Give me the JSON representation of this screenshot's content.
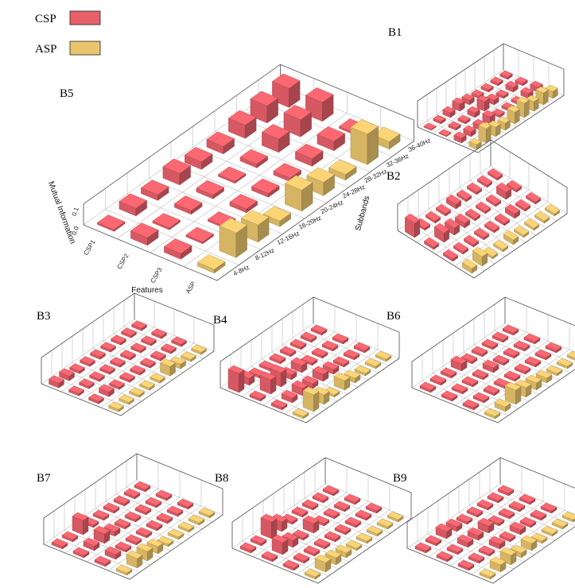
{
  "colors": {
    "csp": "#e8606a",
    "asp": "#e8c46c"
  },
  "legend": [
    {
      "label": "CSP",
      "key": "csp"
    },
    {
      "label": "ASP",
      "key": "asp"
    }
  ],
  "chart_data": [
    {
      "type": "bar3d",
      "panel": "B5",
      "title": "",
      "xlabel": "Features",
      "ylabel": "Subbands",
      "zlabel": "Mutual Information",
      "x_categories": [
        "CSP1",
        "CSP2",
        "CSP3",
        "ASP"
      ],
      "y_categories": [
        "4-8Hz",
        "8-12Hz",
        "12-16Hz",
        "16-20Hz",
        "20-24Hz",
        "24-28Hz",
        "28-32Hz",
        "32-36Hz",
        "36-40Hz"
      ],
      "z_ticks": [
        "0.0",
        "0.1"
      ],
      "zlim": [
        0,
        0.2
      ],
      "values": [
        [
          0.01,
          0.04,
          0.03,
          0.06,
          0.04,
          0.04,
          0.07,
          0.09,
          0.1
        ],
        [
          0.04,
          0.01,
          0.02,
          0.02,
          0.01,
          0.02,
          0.07,
          0.09,
          0.1
        ],
        [
          0.03,
          0.01,
          0.01,
          0.02,
          0.02,
          0.02,
          0.04,
          0.05,
          0.01
        ],
        [
          0.02,
          0.13,
          0.09,
          0.03,
          0.11,
          0.07,
          0.03,
          0.16,
          0.04
        ]
      ]
    },
    {
      "type": "bar3d",
      "panel": "B1",
      "values": [
        [
          0.0,
          0.01,
          0.02,
          0.03,
          0.02,
          0.01,
          0.01,
          0.01,
          0.01
        ],
        [
          0.0,
          0.01,
          0.01,
          0.02,
          0.04,
          0.02,
          0.01,
          0.02,
          0.01
        ],
        [
          0.02,
          0.02,
          0.02,
          0.03,
          0.01,
          0.01,
          0.01,
          0.02,
          0.02
        ],
        [
          0.02,
          0.06,
          0.04,
          0.03,
          0.05,
          0.06,
          0.04,
          0.05,
          0.03
        ]
      ]
    },
    {
      "type": "bar3d",
      "panel": "B2",
      "values": [
        [
          0.06,
          0.01,
          0.01,
          0.01,
          0.02,
          0.01,
          0.01,
          0.01,
          0.01
        ],
        [
          0.01,
          0.04,
          0.03,
          0.02,
          0.01,
          0.01,
          0.01,
          0.03,
          0.01
        ],
        [
          0.01,
          0.01,
          0.01,
          0.01,
          0.01,
          0.01,
          0.02,
          0.01,
          0.01
        ],
        [
          0.02,
          0.04,
          0.01,
          0.01,
          0.02,
          0.01,
          0.01,
          0.01,
          0.01
        ]
      ]
    },
    {
      "type": "bar3d",
      "panel": "B3",
      "values": [
        [
          0.02,
          0.02,
          0.01,
          0.01,
          0.01,
          0.01,
          0.01,
          0.01,
          0.01
        ],
        [
          0.01,
          0.01,
          0.01,
          0.01,
          0.01,
          0.01,
          0.01,
          0.01,
          0.01
        ],
        [
          0.01,
          0.02,
          0.01,
          0.01,
          0.01,
          0.01,
          0.01,
          0.01,
          0.01
        ],
        [
          0.01,
          0.01,
          0.01,
          0.01,
          0.01,
          0.04,
          0.02,
          0.01,
          0.01
        ]
      ]
    },
    {
      "type": "bar3d",
      "panel": "B4",
      "values": [
        [
          0.08,
          0.03,
          0.01,
          0.01,
          0.01,
          0.01,
          0.01,
          0.01,
          0.01
        ],
        [
          0.01,
          0.06,
          0.06,
          0.02,
          0.03,
          0.01,
          0.01,
          0.01,
          0.01
        ],
        [
          0.01,
          0.02,
          0.03,
          0.02,
          0.03,
          0.02,
          0.01,
          0.01,
          0.01
        ],
        [
          0.01,
          0.07,
          0.04,
          0.01,
          0.04,
          0.02,
          0.01,
          0.01,
          0.01
        ]
      ]
    },
    {
      "type": "bar3d",
      "panel": "B6",
      "values": [
        [
          0.01,
          0.01,
          0.01,
          0.03,
          0.01,
          0.01,
          0.01,
          0.01,
          0.01
        ],
        [
          0.01,
          0.01,
          0.01,
          0.01,
          0.02,
          0.01,
          0.01,
          0.01,
          0.01
        ],
        [
          0.01,
          0.01,
          0.01,
          0.01,
          0.01,
          0.01,
          0.01,
          0.01,
          0.01
        ],
        [
          0.01,
          0.02,
          0.06,
          0.04,
          0.03,
          0.02,
          0.01,
          0.01,
          0.01
        ]
      ]
    },
    {
      "type": "bar3d",
      "panel": "B7",
      "values": [
        [
          0.01,
          0.01,
          0.06,
          0.01,
          0.01,
          0.01,
          0.01,
          0.01,
          0.01
        ],
        [
          0.01,
          0.02,
          0.04,
          0.02,
          0.01,
          0.01,
          0.01,
          0.01,
          0.01
        ],
        [
          0.01,
          0.02,
          0.01,
          0.01,
          0.01,
          0.01,
          0.01,
          0.01,
          0.01
        ],
        [
          0.01,
          0.04,
          0.04,
          0.03,
          0.01,
          0.01,
          0.01,
          0.01,
          0.01
        ]
      ]
    },
    {
      "type": "bar3d",
      "panel": "B8",
      "values": [
        [
          0.01,
          0.01,
          0.07,
          0.04,
          0.01,
          0.01,
          0.01,
          0.01,
          0.01
        ],
        [
          0.01,
          0.05,
          0.03,
          0.01,
          0.04,
          0.01,
          0.01,
          0.01,
          0.01
        ],
        [
          0.01,
          0.01,
          0.01,
          0.01,
          0.01,
          0.01,
          0.01,
          0.01,
          0.01
        ],
        [
          0.01,
          0.04,
          0.03,
          0.02,
          0.01,
          0.01,
          0.01,
          0.01,
          0.01
        ]
      ]
    },
    {
      "type": "bar3d",
      "panel": "B9",
      "values": [
        [
          0.01,
          0.01,
          0.03,
          0.02,
          0.01,
          0.01,
          0.01,
          0.01,
          0.01
        ],
        [
          0.01,
          0.01,
          0.02,
          0.02,
          0.03,
          0.01,
          0.01,
          0.01,
          0.01
        ],
        [
          0.01,
          0.01,
          0.01,
          0.02,
          0.01,
          0.02,
          0.01,
          0.01,
          0.01
        ],
        [
          0.01,
          0.03,
          0.04,
          0.02,
          0.03,
          0.01,
          0.01,
          0.01,
          0.01
        ]
      ]
    }
  ]
}
